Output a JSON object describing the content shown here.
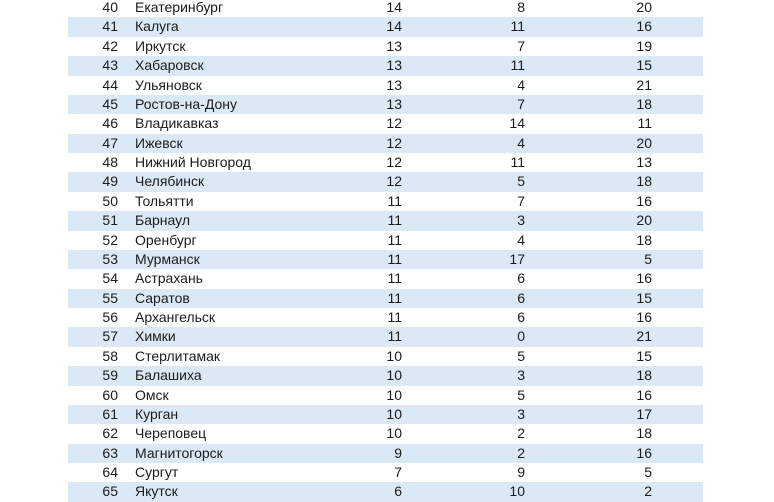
{
  "colors": {
    "page_background": "#ffffff",
    "row_stripe": "#dbe8f6",
    "text": "#1b1b1b"
  },
  "table": {
    "description": "city-ranking-table",
    "rows": [
      {
        "rank": "40",
        "city": "Екатеринбург",
        "values": [
          "14",
          "8",
          "20"
        ]
      },
      {
        "rank": "41",
        "city": "Калуга",
        "values": [
          "14",
          "11",
          "16"
        ]
      },
      {
        "rank": "42",
        "city": "Иркутск",
        "values": [
          "13",
          "7",
          "19"
        ]
      },
      {
        "rank": "43",
        "city": "Хабаровск",
        "values": [
          "13",
          "11",
          "15"
        ]
      },
      {
        "rank": "44",
        "city": "Ульяновск",
        "values": [
          "13",
          "4",
          "21"
        ]
      },
      {
        "rank": "45",
        "city": "Ростов-на-Дону",
        "values": [
          "13",
          "7",
          "18"
        ]
      },
      {
        "rank": "46",
        "city": "Владикавказ",
        "values": [
          "12",
          "14",
          "11"
        ]
      },
      {
        "rank": "47",
        "city": "Ижевск",
        "values": [
          "12",
          "4",
          "20"
        ]
      },
      {
        "rank": "48",
        "city": "Нижний Новгород",
        "values": [
          "12",
          "11",
          "13"
        ]
      },
      {
        "rank": "49",
        "city": "Челябинск",
        "values": [
          "12",
          "5",
          "18"
        ]
      },
      {
        "rank": "50",
        "city": "Тольятти",
        "values": [
          "11",
          "7",
          "16"
        ]
      },
      {
        "rank": "51",
        "city": "Барнаул",
        "values": [
          "11",
          "3",
          "20"
        ]
      },
      {
        "rank": "52",
        "city": "Оренбург",
        "values": [
          "11",
          "4",
          "18"
        ]
      },
      {
        "rank": "53",
        "city": "Мурманск",
        "values": [
          "11",
          "17",
          "5"
        ]
      },
      {
        "rank": "54",
        "city": "Астрахань",
        "values": [
          "11",
          "6",
          "16"
        ]
      },
      {
        "rank": "55",
        "city": "Саратов",
        "values": [
          "11",
          "6",
          "15"
        ]
      },
      {
        "rank": "56",
        "city": "Архангельск",
        "values": [
          "11",
          "6",
          "16"
        ]
      },
      {
        "rank": "57",
        "city": "Химки",
        "values": [
          "11",
          "0",
          "21"
        ]
      },
      {
        "rank": "58",
        "city": "Стерлитамак",
        "values": [
          "10",
          "5",
          "15"
        ]
      },
      {
        "rank": "59",
        "city": "Балашиха",
        "values": [
          "10",
          "3",
          "18"
        ]
      },
      {
        "rank": "60",
        "city": "Омск",
        "values": [
          "10",
          "5",
          "16"
        ]
      },
      {
        "rank": "61",
        "city": "Курган",
        "values": [
          "10",
          "3",
          "17"
        ]
      },
      {
        "rank": "62",
        "city": "Череповец",
        "values": [
          "10",
          "2",
          "18"
        ]
      },
      {
        "rank": "63",
        "city": "Магнитогорск",
        "values": [
          "9",
          "2",
          "16"
        ]
      },
      {
        "rank": "64",
        "city": "Сургут",
        "values": [
          "7",
          "9",
          "5"
        ]
      },
      {
        "rank": "65",
        "city": "Якутск",
        "values": [
          "6",
          "10",
          "2"
        ]
      }
    ]
  }
}
